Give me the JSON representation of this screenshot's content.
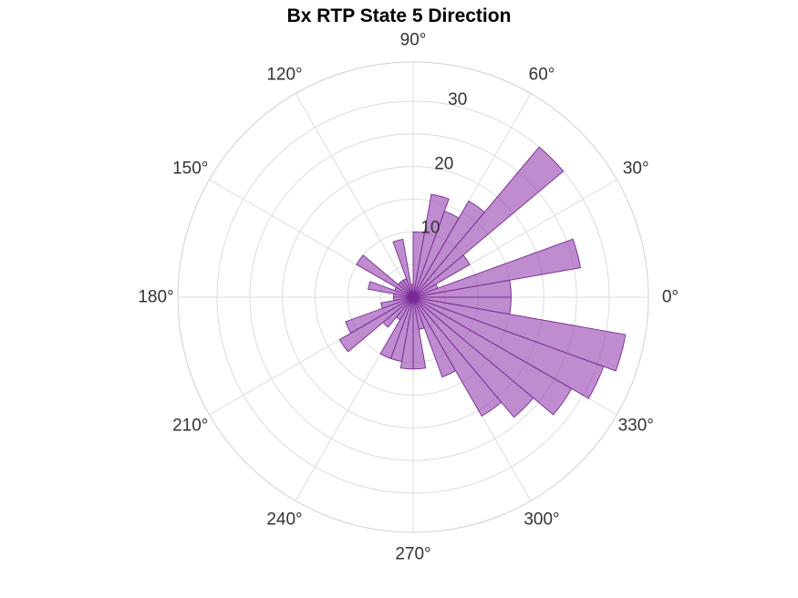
{
  "colors": {
    "bar_fill": "#9b4fb5",
    "bar_edge": "#7a2a96",
    "grid": "#dcdcdc",
    "text": "#333333"
  },
  "chart_data": {
    "type": "polar-bar",
    "title": "Bx  RTP State 5 Direction",
    "angle_unit": "degrees",
    "bin_width_deg": 10,
    "rlim": [
      0,
      36
    ],
    "r_ticks": [
      10,
      20,
      30
    ],
    "r_tick_labels": [
      "10",
      "20",
      "30"
    ],
    "angle_ticks": [
      0,
      30,
      60,
      90,
      120,
      150,
      180,
      210,
      240,
      270,
      300,
      330
    ],
    "angle_tick_labels": [
      "0°",
      "30°",
      "60°",
      "90°",
      "120°",
      "150°",
      "180°",
      "210°",
      "240°",
      "270°",
      "300°",
      "330°"
    ],
    "grid": true,
    "bins": [
      {
        "center": 5,
        "value": 15
      },
      {
        "center": 15,
        "value": 26
      },
      {
        "center": 25,
        "value": 4
      },
      {
        "center": 35,
        "value": 10
      },
      {
        "center": 45,
        "value": 30
      },
      {
        "center": 55,
        "value": 17
      },
      {
        "center": 65,
        "value": 14
      },
      {
        "center": 75,
        "value": 16
      },
      {
        "center": 85,
        "value": 10
      },
      {
        "center": 95,
        "value": 2
      },
      {
        "center": 105,
        "value": 9
      },
      {
        "center": 115,
        "value": 3
      },
      {
        "center": 125,
        "value": 3
      },
      {
        "center": 135,
        "value": 3
      },
      {
        "center": 145,
        "value": 10
      },
      {
        "center": 155,
        "value": 3
      },
      {
        "center": 165,
        "value": 7
      },
      {
        "center": 175,
        "value": 3
      },
      {
        "center": 185,
        "value": 3
      },
      {
        "center": 195,
        "value": 5
      },
      {
        "center": 205,
        "value": 11
      },
      {
        "center": 215,
        "value": 13
      },
      {
        "center": 225,
        "value": 6
      },
      {
        "center": 235,
        "value": 4
      },
      {
        "center": 245,
        "value": 10
      },
      {
        "center": 255,
        "value": 10
      },
      {
        "center": 265,
        "value": 11
      },
      {
        "center": 275,
        "value": 11
      },
      {
        "center": 285,
        "value": 5
      },
      {
        "center": 295,
        "value": 13
      },
      {
        "center": 305,
        "value": 21
      },
      {
        "center": 315,
        "value": 24
      },
      {
        "center": 325,
        "value": 28
      },
      {
        "center": 335,
        "value": 31
      },
      {
        "center": 345,
        "value": 33
      },
      {
        "center": 355,
        "value": 15
      }
    ]
  }
}
